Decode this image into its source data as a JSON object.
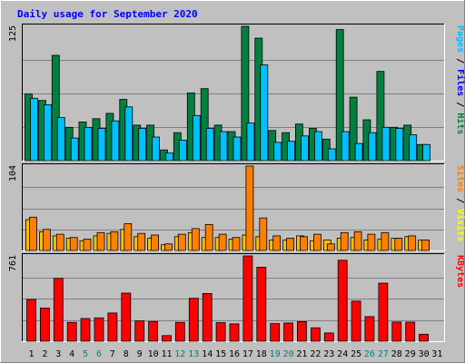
{
  "chart_data": {
    "type": "bar",
    "title": "Daily usage for September 2020",
    "days": [
      "1",
      "2",
      "3",
      "4",
      "5",
      "6",
      "7",
      "8",
      "9",
      "10",
      "11",
      "12",
      "13",
      "14",
      "15",
      "16",
      "17",
      "18",
      "19",
      "20",
      "21",
      "22",
      "23",
      "24",
      "25",
      "26",
      "27",
      "28",
      "29",
      "30",
      "31"
    ],
    "weekend_days": [
      5,
      6,
      12,
      13,
      19,
      20,
      26,
      27
    ],
    "panels": [
      {
        "name": "Hits / Files / Pages",
        "max_label": "125",
        "ymax": 125,
        "labels": [
          {
            "text": "Hits",
            "color": "#008040"
          },
          {
            "text": "Files",
            "color": "#0000ff"
          },
          {
            "text": "Pages",
            "color": "#00c0ff"
          }
        ],
        "series": [
          {
            "name": "Hits",
            "color": "#008040",
            "values": [
              62,
              56,
              98,
              31,
              36,
              39,
              44,
              57,
              33,
              33,
              10,
              26,
              63,
              67,
              33,
              27,
              125,
              114,
              28,
              26,
              34,
              30,
              20,
              122,
              59,
              38,
              83,
              31,
              33,
              15,
              0
            ]
          },
          {
            "name": "Files",
            "color": "#0000ff",
            "values": [
              58,
              52,
              40,
              21,
              31,
              30,
              37,
              50,
              30,
              22,
              7,
              19,
              42,
              30,
              27,
              22,
              35,
              89,
              17,
              18,
              23,
              27,
              11,
              27,
              16,
              26,
              31,
              30,
              24,
              15,
              0
            ]
          },
          {
            "name": "Pages",
            "color": "#00c0ff",
            "values": [
              58,
              52,
              40,
              21,
              31,
              30,
              37,
              50,
              30,
              22,
              7,
              19,
              42,
              30,
              27,
              22,
              35,
              89,
              17,
              18,
              23,
              27,
              11,
              27,
              16,
              26,
              31,
              30,
              24,
              15,
              0
            ]
          }
        ]
      },
      {
        "name": "Visits / Sites",
        "max_label": "104",
        "ymax": 104,
        "labels": [
          {
            "text": "Visits",
            "color": "#ffff00"
          },
          {
            "text": "Sites",
            "color": "#ff8000"
          }
        ],
        "series": [
          {
            "name": "Visits",
            "color": "#ffc000",
            "values": [
              38,
              23,
              18,
              15,
              12,
              18,
              21,
              26,
              17,
              15,
              7,
              17,
              22,
              16,
              16,
              14,
              19,
              17,
              13,
              13,
              18,
              12,
              13,
              15,
              16,
              13,
              14,
              15,
              17,
              13,
              0
            ]
          },
          {
            "name": "Sites",
            "color": "#ff8000",
            "values": [
              41,
              26,
              20,
              16,
              14,
              22,
              23,
              33,
              21,
              19,
              8,
              20,
              27,
              32,
              20,
              16,
              104,
              40,
              18,
              15,
              17,
              20,
              8,
              22,
              23,
              20,
              22,
              15,
              18,
              13,
              0
            ]
          }
        ]
      },
      {
        "name": "KBytes",
        "max_label": "761",
        "ymax": 761,
        "labels": [
          {
            "text": "KBytes",
            "color": "#ff0000"
          }
        ],
        "series": [
          {
            "name": "KBytes",
            "color": "#ff0000",
            "values": [
              373,
              296,
              560,
              168,
              202,
              208,
              252,
              429,
              181,
              176,
              50,
              168,
              383,
              426,
              166,
              155,
              761,
              661,
              157,
              163,
              175,
              120,
              74,
              722,
              358,
              219,
              518,
              171,
              170,
              62,
              0
            ]
          }
        ]
      }
    ]
  }
}
